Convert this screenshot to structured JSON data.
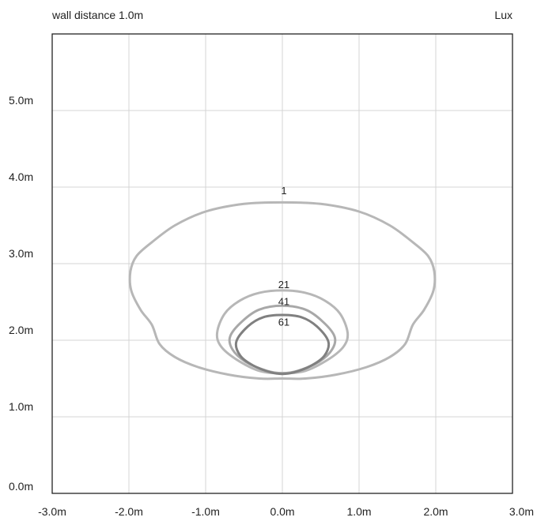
{
  "header": {
    "subtitle": "wall distance 1.0m",
    "unit": "Lux"
  },
  "chart_data": {
    "type": "contour",
    "title": "",
    "xlim": [
      -3.0,
      3.0
    ],
    "ylim": [
      0.0,
      6.0
    ],
    "grid": true,
    "x_ticks": [
      "-3.0m",
      "-2.0m",
      "-1.0m",
      "0.0m",
      "1.0m",
      "2.0m",
      "3.0m"
    ],
    "x_tick_values": [
      -3,
      -2,
      -1,
      0,
      1,
      2,
      3
    ],
    "y_ticks": [
      "0.0m",
      "1.0m",
      "2.0m",
      "3.0m",
      "4.0m",
      "5.0m"
    ],
    "y_tick_values": [
      0,
      1,
      2,
      3,
      4,
      5
    ],
    "contours": [
      {
        "level": "1",
        "color": "#b7b7b7",
        "label_pos": [
          0.02,
          3.95
        ],
        "points": [
          [
            0,
            3.8
          ],
          [
            0.5,
            3.78
          ],
          [
            1.0,
            3.68
          ],
          [
            1.4,
            3.5
          ],
          [
            1.7,
            3.28
          ],
          [
            1.9,
            3.1
          ],
          [
            1.98,
            2.9
          ],
          [
            1.97,
            2.65
          ],
          [
            1.85,
            2.4
          ],
          [
            1.7,
            2.2
          ],
          [
            1.6,
            1.95
          ],
          [
            1.4,
            1.78
          ],
          [
            1.1,
            1.65
          ],
          [
            0.7,
            1.55
          ],
          [
            0.3,
            1.5
          ],
          [
            0,
            1.5
          ],
          [
            -0.3,
            1.5
          ],
          [
            -0.7,
            1.55
          ],
          [
            -1.1,
            1.65
          ],
          [
            -1.4,
            1.78
          ],
          [
            -1.6,
            1.95
          ],
          [
            -1.7,
            2.2
          ],
          [
            -1.85,
            2.4
          ],
          [
            -1.97,
            2.65
          ],
          [
            -1.98,
            2.9
          ],
          [
            -1.9,
            3.1
          ],
          [
            -1.7,
            3.28
          ],
          [
            -1.4,
            3.5
          ],
          [
            -1.0,
            3.68
          ],
          [
            -0.5,
            3.78
          ]
        ]
      },
      {
        "level": "21",
        "color": "#b7b7b7",
        "label_pos": [
          0.02,
          2.72
        ],
        "points": [
          [
            0,
            2.65
          ],
          [
            0.3,
            2.62
          ],
          [
            0.55,
            2.52
          ],
          [
            0.75,
            2.35
          ],
          [
            0.85,
            2.1
          ],
          [
            0.8,
            1.92
          ],
          [
            0.6,
            1.75
          ],
          [
            0.3,
            1.6
          ],
          [
            0,
            1.57
          ],
          [
            -0.3,
            1.6
          ],
          [
            -0.6,
            1.75
          ],
          [
            -0.8,
            1.92
          ],
          [
            -0.85,
            2.1
          ],
          [
            -0.75,
            2.35
          ],
          [
            -0.55,
            2.52
          ],
          [
            -0.3,
            2.62
          ]
        ]
      },
      {
        "level": "41",
        "color": "#a8a8a8",
        "label_pos": [
          0.02,
          2.5
        ],
        "points": [
          [
            0,
            2.45
          ],
          [
            0.3,
            2.4
          ],
          [
            0.52,
            2.25
          ],
          [
            0.68,
            2.05
          ],
          [
            0.65,
            1.88
          ],
          [
            0.48,
            1.72
          ],
          [
            0.2,
            1.6
          ],
          [
            0,
            1.57
          ],
          [
            -0.2,
            1.6
          ],
          [
            -0.48,
            1.72
          ],
          [
            -0.65,
            1.88
          ],
          [
            -0.68,
            2.05
          ],
          [
            -0.52,
            2.25
          ],
          [
            -0.3,
            2.4
          ]
        ]
      },
      {
        "level": "61",
        "color": "#808080",
        "label_pos": [
          0.02,
          2.23
        ],
        "points": [
          [
            0,
            2.33
          ],
          [
            0.25,
            2.3
          ],
          [
            0.45,
            2.18
          ],
          [
            0.6,
            1.98
          ],
          [
            0.55,
            1.8
          ],
          [
            0.38,
            1.67
          ],
          [
            0.15,
            1.58
          ],
          [
            0,
            1.56
          ],
          [
            -0.15,
            1.58
          ],
          [
            -0.38,
            1.67
          ],
          [
            -0.55,
            1.8
          ],
          [
            -0.6,
            1.98
          ],
          [
            -0.45,
            2.18
          ],
          [
            -0.25,
            2.3
          ]
        ]
      }
    ]
  }
}
